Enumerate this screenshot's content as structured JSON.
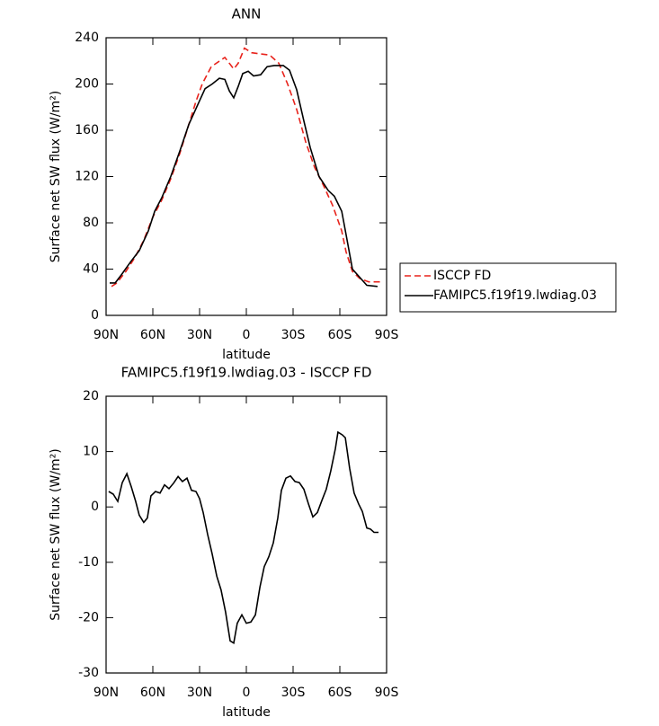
{
  "chart_data": [
    {
      "type": "line",
      "title": "ANN",
      "xlabel": "latitude",
      "ylabel": "Surface net SW flux (W/m²)",
      "xlim": [
        90,
        -90
      ],
      "xticks": [
        {
          "value": 90,
          "label": "90N"
        },
        {
          "value": 60,
          "label": "60N"
        },
        {
          "value": 30,
          "label": "30N"
        },
        0,
        {
          "value": -30,
          "label": "30S"
        },
        {
          "value": -60,
          "label": "60S"
        },
        {
          "value": -90,
          "label": "90S"
        }
      ],
      "ylim": [
        0,
        240
      ],
      "yticks": [
        0,
        40,
        80,
        120,
        160,
        200,
        240
      ],
      "legend": "right",
      "series": [
        {
          "name": "ISCCP FD",
          "color": "#e8231c",
          "dash": true,
          "x": [
            86.5,
            83.1,
            77.3,
            71.5,
            65.8,
            60,
            54.2,
            48.5,
            42.7,
            36.9,
            32.3,
            28.3,
            22.5,
            13.8,
            8.1,
            5.2,
            1.2,
            -3.5,
            -9.2,
            -15,
            -20.8,
            -26.5,
            -32.3,
            -38.1,
            -43.8,
            -49.6,
            -55.4,
            -61.2,
            -64,
            -68.1,
            -72.7,
            -78.5,
            -87.1
          ],
          "values": [
            25,
            28,
            38,
            50,
            65,
            85,
            100,
            118,
            140,
            165,
            185,
            200,
            215,
            223,
            213,
            218,
            231,
            227,
            226,
            225,
            218,
            200,
            178,
            150,
            128,
            112,
            95,
            73,
            55,
            38,
            32,
            29,
            29
          ]
        },
        {
          "name": "FAMIPC5.f19f19.lwdiag.03",
          "color": "#000000",
          "dash": false,
          "x": [
            87.7,
            84.2,
            80.2,
            74.4,
            68.7,
            62.9,
            58.8,
            54.2,
            48.5,
            42.7,
            36.9,
            31.2,
            26.5,
            21.9,
            17.3,
            13.8,
            10.9,
            8.1,
            5.2,
            2.3,
            -1.2,
            -4.6,
            -9.2,
            -13.3,
            -17.9,
            -23.7,
            -27.7,
            -32.3,
            -36.9,
            -41,
            -46.7,
            -52.5,
            -56.5,
            -61.2,
            -64,
            -68.1,
            -72.7,
            -77.3,
            -84.2
          ],
          "values": [
            28,
            28,
            35,
            46,
            56,
            73,
            90,
            102,
            120,
            142,
            165,
            182,
            196,
            200,
            205,
            204,
            194,
            188,
            198,
            209,
            211,
            207,
            208,
            215,
            216,
            216,
            212,
            195,
            168,
            145,
            120,
            108,
            103,
            90,
            70,
            40,
            33,
            26,
            25
          ]
        }
      ]
    },
    {
      "type": "line",
      "title": "FAMIPC5.f19f19.lwdiag.03 - ISCCP FD",
      "xlabel": "latitude",
      "ylabel": "Surface net SW flux (W/m²)",
      "xlim": [
        90,
        -90
      ],
      "xticks": [
        {
          "value": 90,
          "label": "90N"
        },
        {
          "value": 60,
          "label": "60N"
        },
        {
          "value": 30,
          "label": "30N"
        },
        0,
        {
          "value": -30,
          "label": "30S"
        },
        {
          "value": -60,
          "label": "60S"
        },
        {
          "value": -90,
          "label": "90S"
        }
      ],
      "ylim": [
        -30,
        20
      ],
      "yticks": [
        -30,
        -20,
        -10,
        0,
        10,
        20
      ],
      "series": [
        {
          "color": "#000000",
          "dash": false,
          "x": [
            88.3,
            85.4,
            82.5,
            79.6,
            76.7,
            73.8,
            71,
            68.7,
            65.8,
            63.5,
            61.2,
            58.3,
            55.4,
            52.5,
            49.6,
            46.7,
            43.8,
            41,
            38.1,
            35.2,
            32.3,
            30,
            27.7,
            24.8,
            21.9,
            19,
            16.2,
            13.3,
            10.4,
            8.1,
            5.8,
            2.9,
            0,
            -2.9,
            -5.8,
            -8.7,
            -11.5,
            -14.4,
            -17.3,
            -20.2,
            -22.5,
            -25.4,
            -28.3,
            -31.2,
            -34,
            -36.9,
            -39.8,
            -42.7,
            -45.6,
            -48.5,
            -51.3,
            -54.2,
            -57.1,
            -58.8,
            -61.7,
            -63.5,
            -66.3,
            -69.2,
            -72.1,
            -74.4,
            -77.3,
            -79.6,
            -81.9,
            -84.8
          ],
          "values": [
            2.8,
            2.3,
            1,
            4.4,
            6,
            3.6,
            1,
            -1.5,
            -2.8,
            -2,
            2,
            2.8,
            2.5,
            4,
            3.3,
            4.3,
            5.5,
            4.6,
            5.2,
            3,
            2.8,
            1.5,
            -1,
            -5,
            -8.5,
            -12.5,
            -15,
            -19,
            -24.2,
            -24.6,
            -21,
            -19.5,
            -21,
            -20.8,
            -19.5,
            -14.5,
            -10.8,
            -9,
            -6.5,
            -2,
            3,
            5.2,
            5.6,
            4.6,
            4.4,
            3.2,
            0.6,
            -1.8,
            -1,
            1.2,
            3.2,
            6.5,
            10.5,
            13.5,
            13,
            12.5,
            7,
            2.5,
            0.5,
            -0.8,
            -3.8,
            -4,
            -4.6,
            -4.6
          ]
        }
      ]
    }
  ]
}
